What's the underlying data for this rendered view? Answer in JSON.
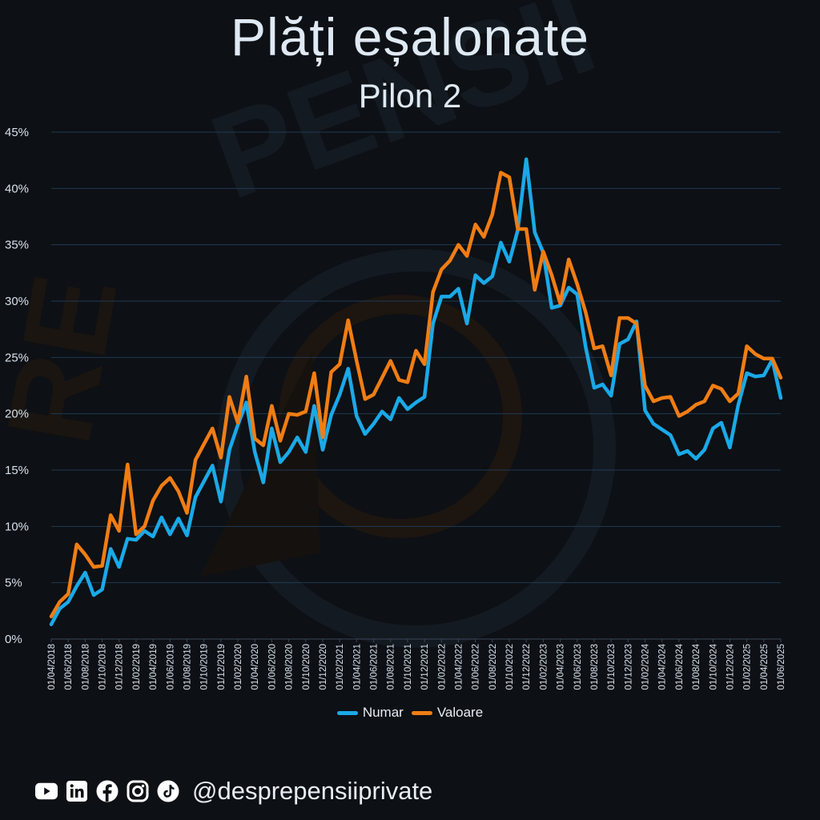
{
  "title": "Plăți eșalonate",
  "subtitle": "Pilon 2",
  "footer": {
    "handle": "@desprepensiiprivate",
    "icons": [
      "youtube-icon",
      "linkedin-icon",
      "facebook-icon",
      "instagram-icon",
      "tiktok-icon"
    ]
  },
  "colors": {
    "background": "#0d1014",
    "numar": "#1aa9e8",
    "valoare": "#f07d14",
    "grid": "#1f3a55",
    "text": "#dfe9f4"
  },
  "chart_data": {
    "type": "line",
    "title": "",
    "xlabel": "",
    "ylabel": "",
    "ylim": [
      0,
      45
    ],
    "yticks": [
      "0%",
      "5%",
      "10%",
      "15%",
      "20%",
      "25%",
      "30%",
      "35%",
      "40%",
      "45%"
    ],
    "grid": true,
    "legend_position": "bottom",
    "x_tick_labels": [
      "01/04/2018",
      "01/06/2018",
      "01/08/2018",
      "01/10/2018",
      "01/12/2018",
      "01/02/2019",
      "01/04/2019",
      "01/06/2019",
      "01/08/2019",
      "01/10/2019",
      "01/12/2019",
      "01/02/2020",
      "01/04/2020",
      "01/06/2020",
      "01/08/2020",
      "01/10/2020",
      "01/12/2020",
      "01/02/2021",
      "01/04/2021",
      "01/06/2021",
      "01/08/2021",
      "01/10/2021",
      "01/12/2021",
      "01/02/2022",
      "01/04/2022",
      "01/06/2022",
      "01/08/2022",
      "01/10/2022",
      "01/12/2022",
      "01/02/2023",
      "01/04/2023",
      "01/06/2023",
      "01/08/2023",
      "01/10/2023",
      "01/12/2023",
      "01/02/2024",
      "01/04/2024",
      "01/06/2024",
      "01/08/2024",
      "01/10/2024",
      "01/12/2024",
      "01/02/2025",
      "01/04/2025",
      "01/06/2025"
    ],
    "x_start": "2018-04",
    "x_end": "2025-06",
    "series": [
      {
        "name": "Numar",
        "color": "#1aa9e8",
        "values": [
          1.3,
          2.7,
          3.3,
          4.7,
          5.9,
          3.9,
          4.4,
          8.0,
          6.4,
          8.9,
          8.8,
          9.6,
          9.1,
          10.8,
          9.3,
          10.7,
          9.2,
          12.6,
          14.0,
          15.4,
          12.2,
          16.8,
          19.0,
          21.0,
          16.6,
          13.9,
          18.7,
          15.7,
          16.6,
          17.9,
          16.6,
          20.7,
          16.8,
          19.9,
          21.7,
          24.0,
          19.8,
          18.2,
          19.1,
          20.2,
          19.5,
          21.4,
          20.4,
          21.0,
          21.5,
          28.0,
          30.4,
          30.4,
          31.1,
          28.0,
          32.3,
          31.6,
          32.2,
          35.2,
          33.5,
          36.3,
          42.6,
          36.1,
          34.3,
          29.4,
          29.6,
          31.2,
          30.6,
          25.9,
          22.3,
          22.6,
          21.6,
          26.2,
          26.6,
          28.2,
          20.3,
          19.1,
          18.6,
          18.1,
          16.4,
          16.7,
          16.0,
          16.8,
          18.7,
          19.2,
          17.0,
          20.8,
          23.6,
          23.3,
          23.4,
          24.8,
          21.4
        ]
      },
      {
        "name": "Valoare",
        "color": "#f07d14",
        "values": [
          2.0,
          3.3,
          4.0,
          8.4,
          7.5,
          6.4,
          6.5,
          11.0,
          9.6,
          15.5,
          9.3,
          10.0,
          12.3,
          13.6,
          14.3,
          13.1,
          11.2,
          15.9,
          17.3,
          18.7,
          16.1,
          21.5,
          19.2,
          23.3,
          17.8,
          17.2,
          20.7,
          17.6,
          20.0,
          19.9,
          20.2,
          23.6,
          17.9,
          23.7,
          24.4,
          28.3,
          24.7,
          21.3,
          21.7,
          23.2,
          24.7,
          23.0,
          22.8,
          25.6,
          24.4,
          30.8,
          32.8,
          33.6,
          35.0,
          34.0,
          36.8,
          35.7,
          37.7,
          41.4,
          41.0,
          36.4,
          36.4,
          31.0,
          34.4,
          32.3,
          29.8,
          33.7,
          31.5,
          29.0,
          25.8,
          26.0,
          23.4,
          28.5,
          28.5,
          28.0,
          22.5,
          21.1,
          21.4,
          21.5,
          19.8,
          20.2,
          20.8,
          21.1,
          22.5,
          22.2,
          21.1,
          21.8,
          26.0,
          25.3,
          24.9,
          24.9,
          23.2
        ]
      }
    ]
  }
}
